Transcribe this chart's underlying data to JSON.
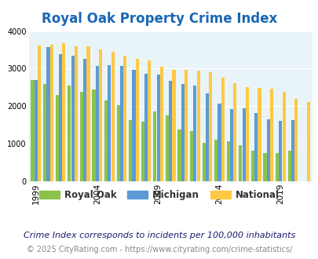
{
  "title": "Royal Oak Property Crime Index",
  "title_color": "#1a67b5",
  "subtitle": "Crime Index corresponds to incidents per 100,000 inhabitants",
  "footer": "© 2025 CityRating.com - https://www.cityrating.com/crime-statistics/",
  "years": [
    1999,
    2000,
    2001,
    2002,
    2003,
    2004,
    2005,
    2006,
    2007,
    2008,
    2009,
    2010,
    2011,
    2012,
    2013,
    2014,
    2015,
    2016,
    2017,
    2018,
    2019,
    2020,
    2021
  ],
  "royal_oak": [
    2700,
    2590,
    2300,
    2540,
    2380,
    2440,
    2150,
    2020,
    1620,
    1580,
    1870,
    1760,
    1380,
    1340,
    1020,
    1110,
    1060,
    970,
    820,
    760,
    750,
    820,
    0
  ],
  "michigan": [
    2700,
    3570,
    3380,
    3350,
    3260,
    3070,
    3090,
    3070,
    2970,
    2860,
    2850,
    2670,
    2600,
    2560,
    2350,
    2060,
    1930,
    1950,
    1820,
    1650,
    1610,
    1640,
    0
  ],
  "national": [
    3610,
    3630,
    3670,
    3600,
    3590,
    3520,
    3440,
    3350,
    3260,
    3210,
    3050,
    2970,
    2960,
    2950,
    2900,
    2760,
    2620,
    2500,
    2490,
    2460,
    2390,
    2190,
    2110
  ],
  "royal_oak_color": "#8bc34a",
  "michigan_color": "#5b9bd5",
  "national_color": "#ffc842",
  "bg_color": "#e8f4f8",
  "ylim": [
    0,
    4000
  ],
  "yticks": [
    0,
    1000,
    2000,
    3000,
    4000
  ],
  "xtick_years": [
    1999,
    2004,
    2009,
    2014,
    2019
  ],
  "legend_labels": [
    "Royal Oak",
    "Michigan",
    "National"
  ],
  "legend_fontsize": 8.5,
  "title_fontsize": 12,
  "subtitle_fontsize": 8,
  "footer_fontsize": 7
}
